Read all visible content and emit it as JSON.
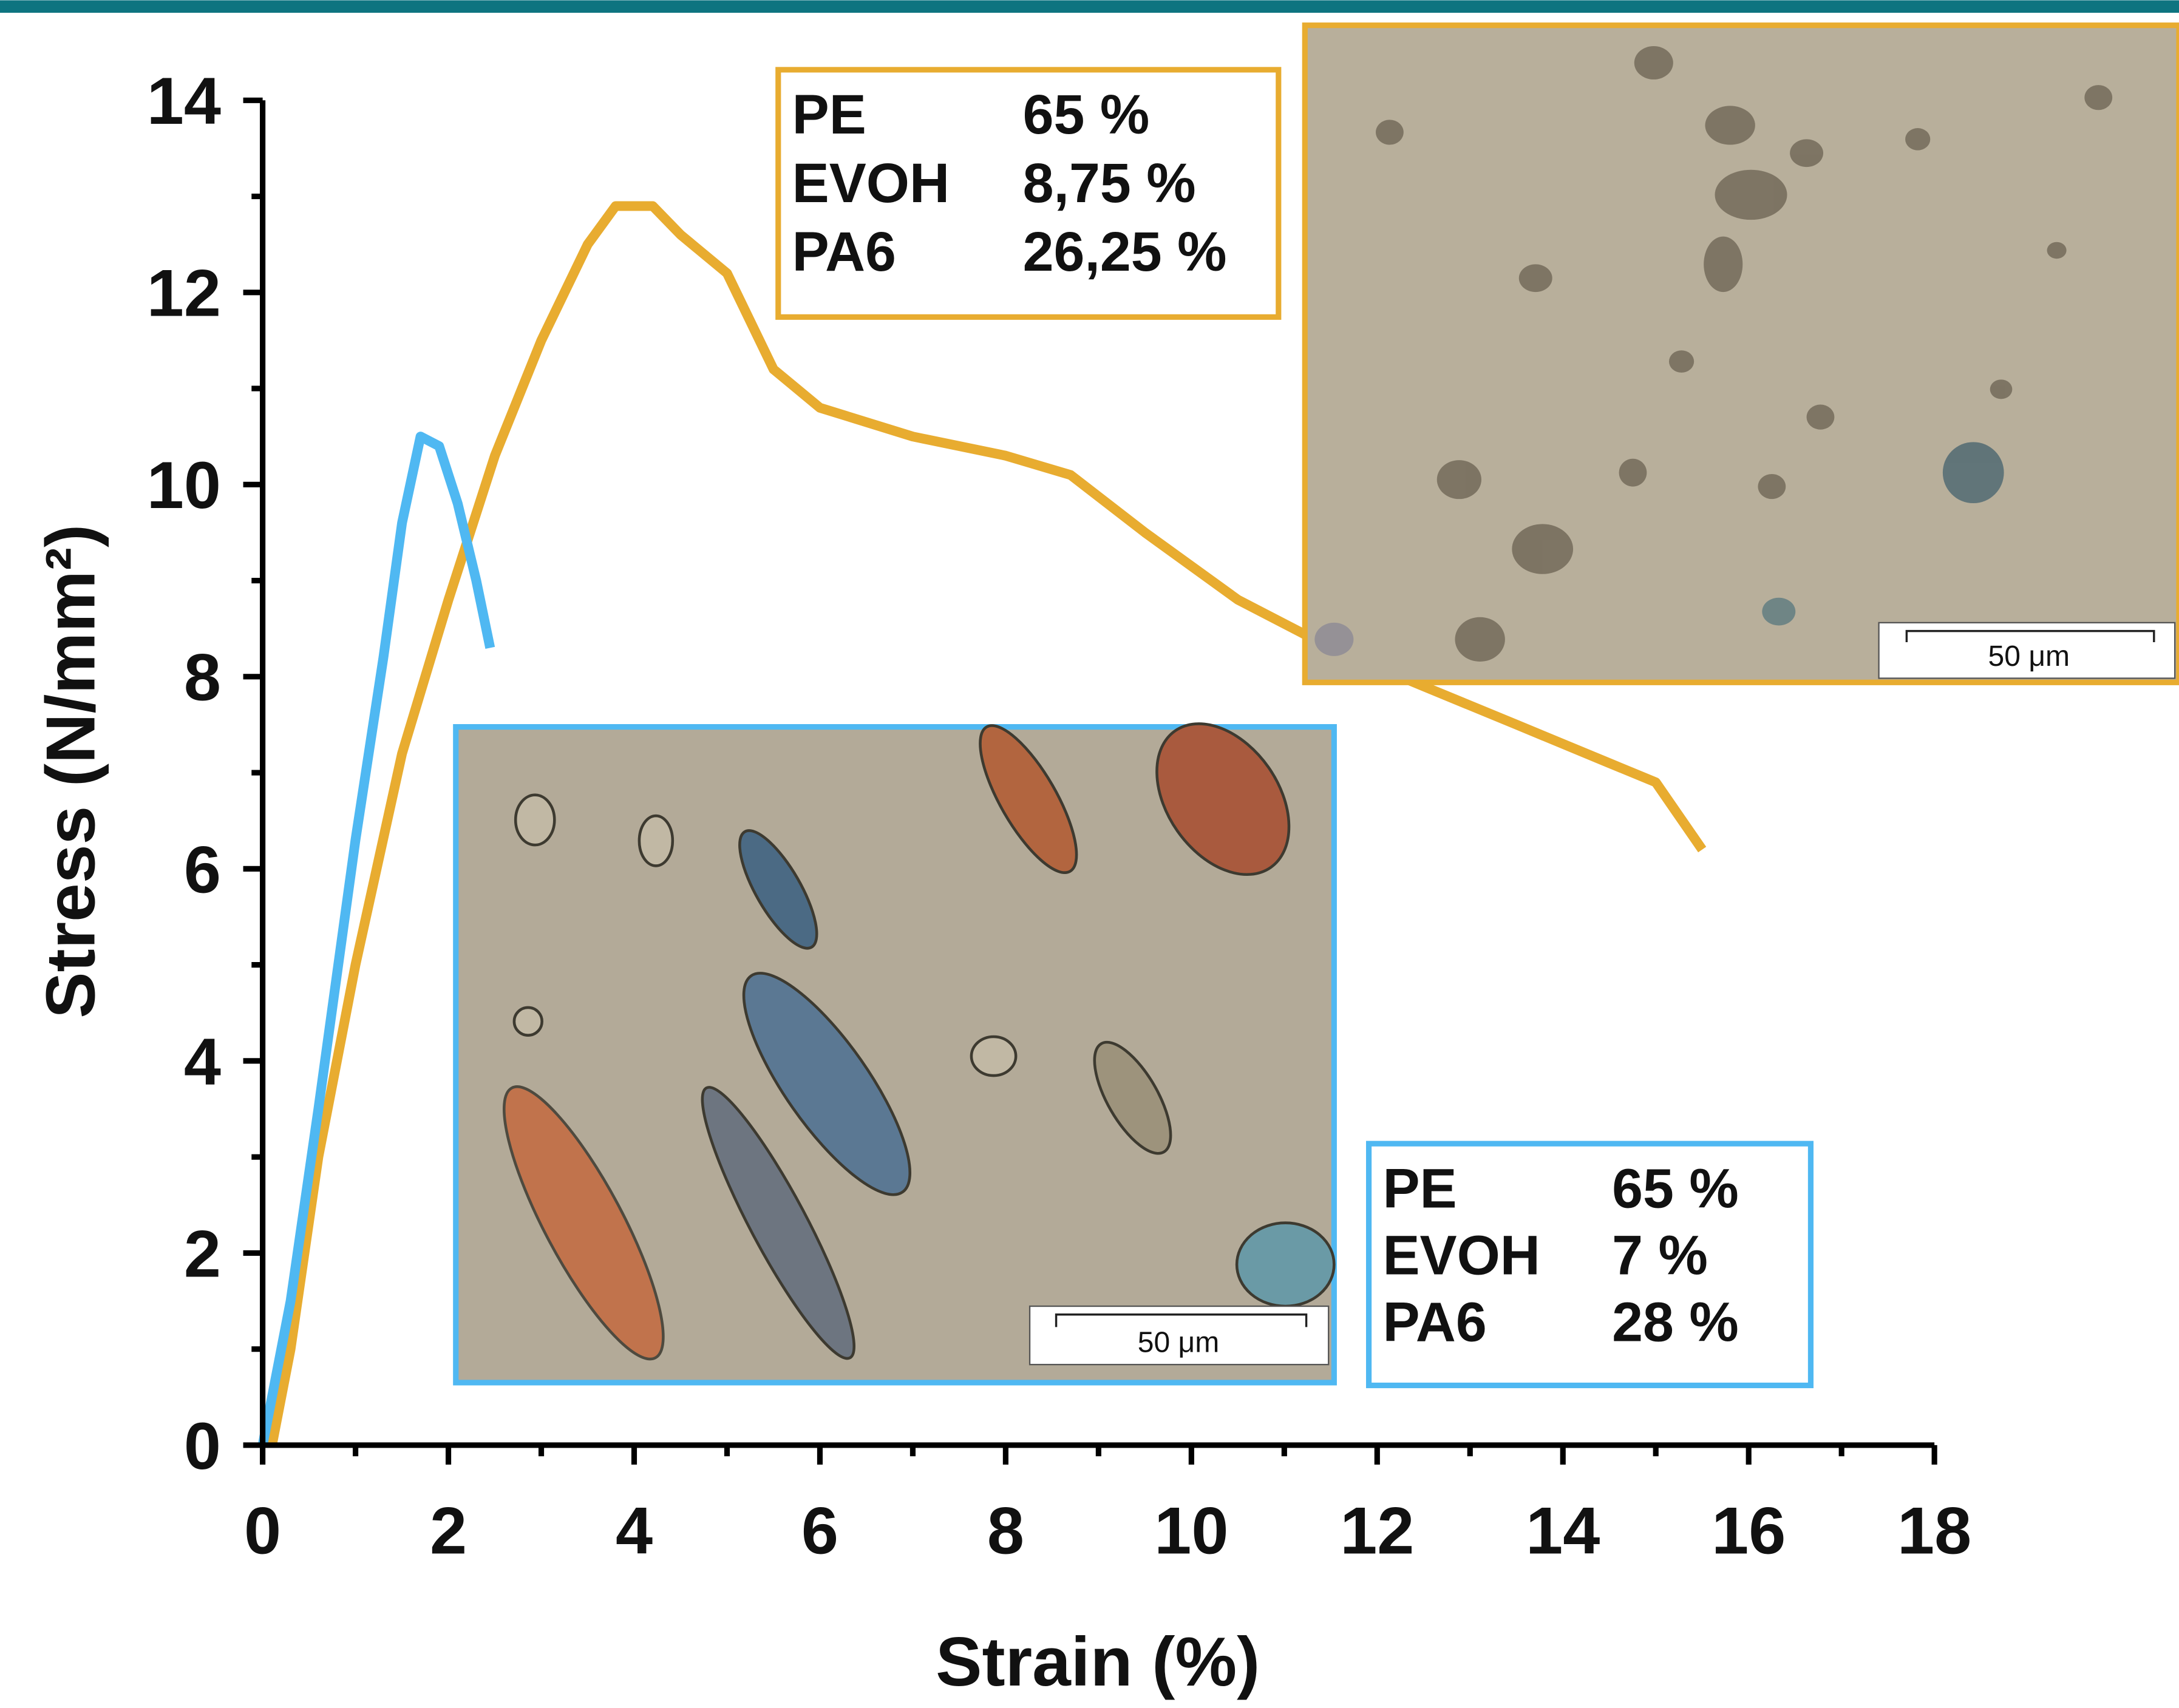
{
  "chart_data": {
    "type": "line",
    "x_label": "Strain (%)",
    "y_label": "Stress (N/mm²)",
    "xlim": [
      0,
      18
    ],
    "xticks": [
      0,
      2,
      4,
      6,
      8,
      10,
      12,
      14,
      16,
      18
    ],
    "ylim": [
      0,
      14
    ],
    "yticks": [
      0,
      2,
      4,
      6,
      8,
      10,
      12,
      14
    ],
    "series": [
      {
        "color": "#e8ac30",
        "x": [
          0.1,
          0.3,
          0.6,
          1,
          1.5,
          2,
          2.5,
          3,
          3.5,
          3.8,
          4.2,
          4.5,
          5,
          5.5,
          6,
          7,
          8,
          8.7,
          9.5,
          10.5,
          11.5,
          12.5,
          13.5,
          14.5,
          15,
          15.5
        ],
        "values": [
          0,
          1,
          3,
          5,
          7.2,
          8.8,
          10.3,
          11.5,
          12.5,
          12.9,
          12.9,
          12.6,
          12.2,
          11.2,
          10.8,
          10.5,
          10.3,
          10.1,
          9.5,
          8.8,
          8.3,
          7.9,
          7.5,
          7.1,
          6.9,
          6.2
        ]
      },
      {
        "color": "#4fb8f2",
        "x": [
          0,
          0.3,
          0.6,
          1,
          1.3,
          1.5,
          1.7,
          1.9,
          2.1,
          2.3,
          2.45
        ],
        "values": [
          0,
          1.5,
          3.5,
          6.3,
          8.2,
          9.6,
          10.5,
          10.4,
          9.8,
          9,
          8.3
        ]
      }
    ],
    "annotations": [
      {
        "color": "#e8ac30",
        "rows": [
          [
            "PE",
            "65 %"
          ],
          [
            "EVOH",
            "8,75 %"
          ],
          [
            "PA6",
            "26,25 %"
          ]
        ],
        "scale_bar": "50 μm"
      },
      {
        "color": "#4fb8f2",
        "rows": [
          [
            "PE",
            "65 %"
          ],
          [
            "EVOH",
            "7 %"
          ],
          [
            "PA6",
            "28 %"
          ]
        ],
        "scale_bar": "50 μm"
      }
    ]
  }
}
